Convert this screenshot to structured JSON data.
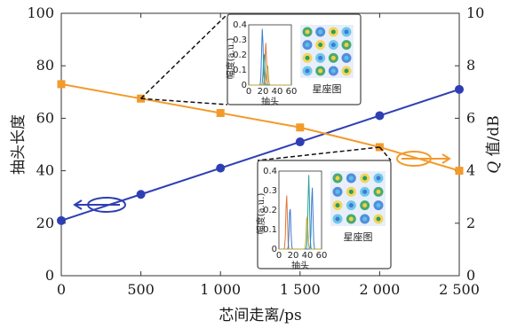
{
  "chart_data": {
    "type": "line",
    "x": [
      0,
      500,
      1000,
      1500,
      2000,
      2500
    ],
    "x_tick_labels": [
      "0",
      "500",
      "1 000",
      "1 500",
      "2 000",
      "2 500"
    ],
    "xlabel": "芯间走离/ps",
    "xlim": [
      0,
      2500
    ],
    "ylabel_left": "抽头长度",
    "ylim_left": [
      0,
      100
    ],
    "yticks_left": [
      "0",
      "20",
      "40",
      "60",
      "80",
      "100"
    ],
    "ylabel_right": "Q 值/dB",
    "ylabel_right_italic": "Q",
    "ylabel_right_rest": " 值/dB",
    "ylim_right": [
      0,
      10
    ],
    "yticks_right": [
      "0",
      "2",
      "4",
      "6",
      "8",
      "10"
    ],
    "series": [
      {
        "axis": "left",
        "color": "#2e3fb3",
        "marker": "circle",
        "values": [
          21,
          31,
          41,
          51,
          61,
          71
        ]
      },
      {
        "axis": "right",
        "color": "#f39a2b",
        "marker": "square",
        "values": [
          7.3,
          6.75,
          6.2,
          5.65,
          4.9,
          4.0
        ]
      }
    ],
    "insets": [
      {
        "anchor_x": 500,
        "ytick_labels": [
          "0",
          "0.1",
          "0.2",
          "0.3",
          "0.4"
        ],
        "xtick_labels": [
          "0",
          "20",
          "40",
          "60"
        ],
        "ylabel": "幅度(a.u.)",
        "xlabel": "抽头",
        "caption": "星座图"
      },
      {
        "anchor_x": 2000,
        "ytick_labels": [
          "0",
          "0.1",
          "0.2",
          "0.3",
          "0.4"
        ],
        "xtick_labels": [
          "0",
          "20",
          "40",
          "60"
        ],
        "ylabel": "幅度(a.u.)",
        "xlabel": "抽头",
        "caption": "星座图"
      }
    ]
  }
}
